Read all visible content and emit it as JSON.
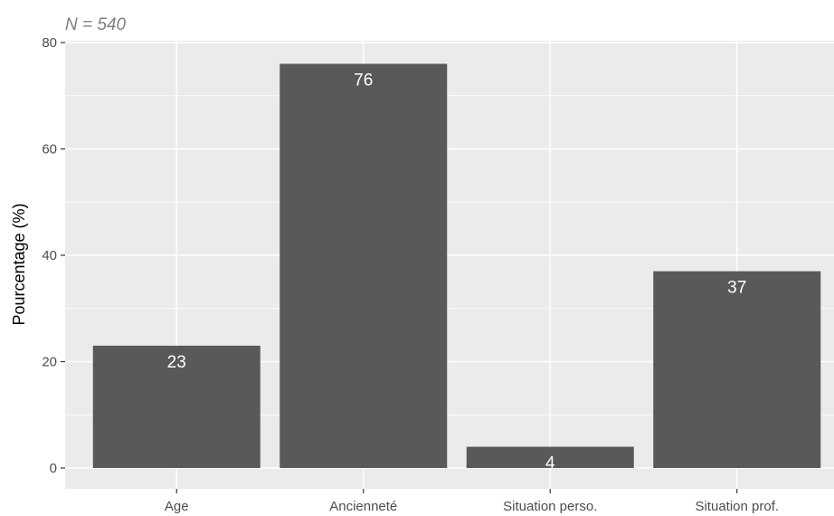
{
  "chart_data": {
    "type": "bar",
    "subtitle": "N = 540",
    "xlabel": "",
    "ylabel": "Pourcentage (%)",
    "categories": [
      "Age",
      "Ancienneté",
      "Situation perso.",
      "Situation prof."
    ],
    "values": [
      23,
      76,
      4,
      37
    ],
    "data_labels": [
      "23",
      "76",
      "4",
      "37"
    ],
    "y_ticks": [
      0,
      20,
      40,
      60,
      80
    ],
    "y_tick_labels": [
      "0",
      "20",
      "40",
      "60",
      "80"
    ],
    "ylim": [
      0,
      80
    ],
    "grid": true,
    "legend": "none",
    "colors": {
      "bar": "#595959",
      "panel": "#ebebeb",
      "grid": "#ffffff",
      "label": "#ffffff"
    }
  }
}
